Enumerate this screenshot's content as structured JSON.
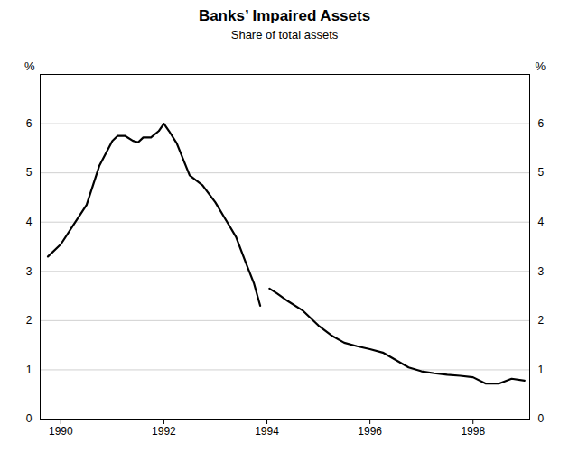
{
  "chart_data": {
    "type": "line",
    "title": "Banks’ Impaired Assets",
    "subtitle": "Share of total assets",
    "ylabel": "%",
    "y2label": "%",
    "xlim": [
      1989.6,
      1999.1
    ],
    "xticks": [
      1990,
      1992,
      1994,
      1996,
      1998
    ],
    "ylim": [
      0,
      7
    ],
    "yticks": [
      0,
      1,
      2,
      3,
      4,
      5,
      6
    ],
    "y2lim": [
      0,
      7
    ],
    "y2ticks": [
      0,
      1,
      2,
      3,
      4,
      5,
      6
    ],
    "grid": true,
    "color": "#000000",
    "series": [
      {
        "x": [
          1989.75,
          1990.0,
          1990.25,
          1990.5,
          1990.75,
          1991.0,
          1991.1,
          1991.25,
          1991.4,
          1991.5,
          1991.6,
          1991.75,
          1991.9,
          1992.0,
          1992.1,
          1992.25,
          1992.5,
          1992.75,
          1993.0,
          1993.2,
          1993.4,
          1993.6,
          1993.75,
          1993.87
        ],
        "values": [
          3.3,
          3.55,
          3.95,
          4.35,
          5.15,
          5.65,
          5.75,
          5.75,
          5.65,
          5.62,
          5.72,
          5.72,
          5.85,
          6.0,
          5.85,
          5.6,
          4.95,
          4.75,
          4.4,
          4.05,
          3.7,
          3.15,
          2.75,
          2.3
        ]
      },
      {
        "x": [
          1994.05,
          1994.2,
          1994.4,
          1994.7,
          1995.0,
          1995.25,
          1995.5,
          1995.75,
          1996.0,
          1996.25,
          1996.5,
          1996.75,
          1997.0,
          1997.25,
          1997.5,
          1997.75,
          1998.0,
          1998.25,
          1998.5,
          1998.75,
          1999.0
        ],
        "values": [
          2.65,
          2.55,
          2.4,
          2.2,
          1.9,
          1.7,
          1.55,
          1.48,
          1.42,
          1.35,
          1.2,
          1.05,
          0.97,
          0.93,
          0.9,
          0.88,
          0.85,
          0.72,
          0.72,
          0.82,
          0.78
        ]
      }
    ]
  }
}
